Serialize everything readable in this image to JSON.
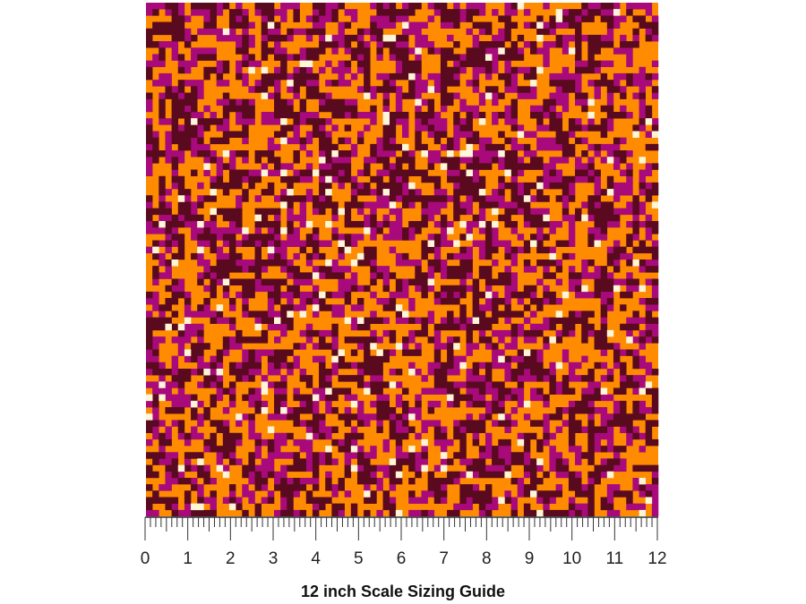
{
  "ruler": {
    "labels": [
      0,
      1,
      2,
      3,
      4,
      5,
      6,
      7,
      8,
      9,
      10,
      11,
      12
    ]
  },
  "caption": "12 inch Scale Sizing Guide"
}
